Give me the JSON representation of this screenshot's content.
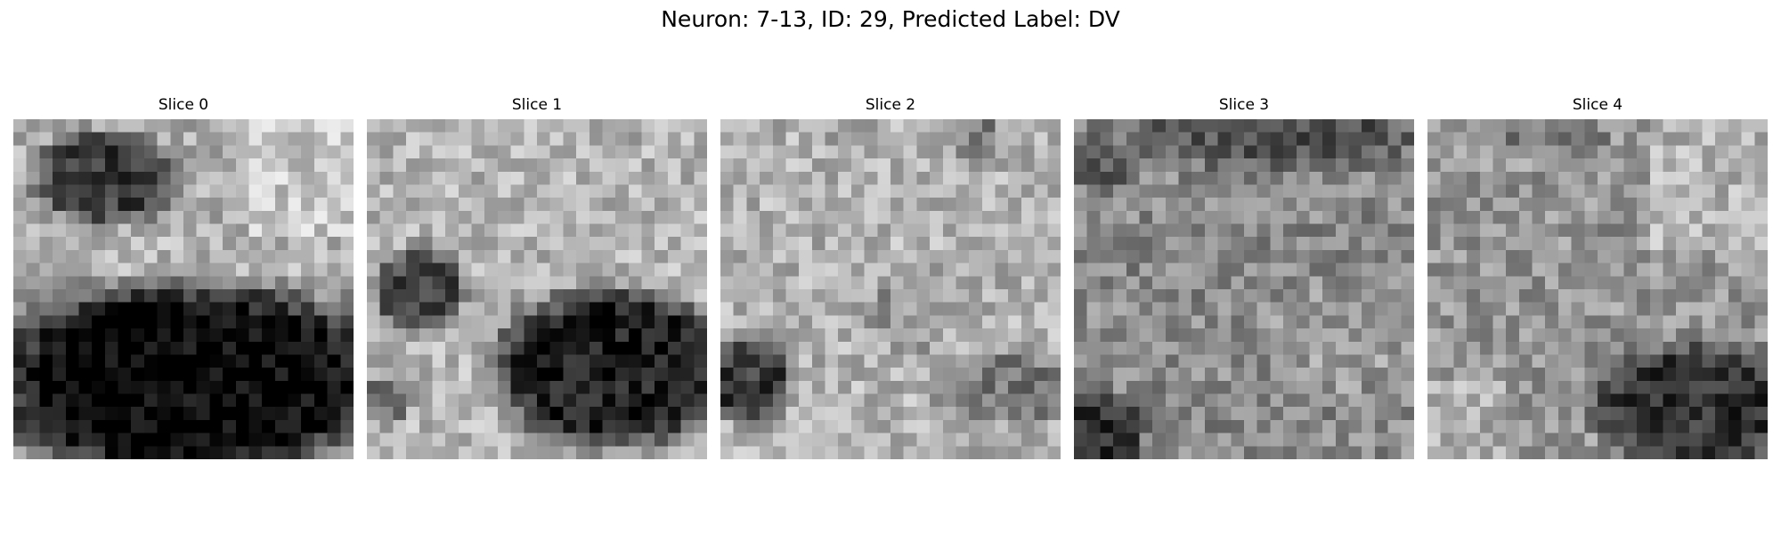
{
  "figure": {
    "title": "Neuron: 7-13, ID: 29, Predicted Label: DV"
  },
  "panels": [
    {
      "title": "Slice 0",
      "image": "grayscale microscopy patch: dark blob upper-left, large dark region lower half, bright band across middle",
      "colormap": "gray"
    },
    {
      "title": "Slice 1",
      "image": "grayscale microscopy patch: bright textured background, small dark blob left-middle, large dark region lower-right",
      "colormap": "gray"
    },
    {
      "title": "Slice 2",
      "image": "grayscale microscopy patch: light mottled texture, dark spot lower-left, darker patches lower-right",
      "colormap": "gray"
    },
    {
      "title": "Slice 3",
      "image": "grayscale microscopy patch: mid-gray noisy texture, darker top and lower-left corner",
      "colormap": "gray"
    },
    {
      "title": "Slice 4",
      "image": "grayscale microscopy patch: mottled texture, brighter upper-right, dark region lower-right",
      "colormap": "gray"
    }
  ]
}
